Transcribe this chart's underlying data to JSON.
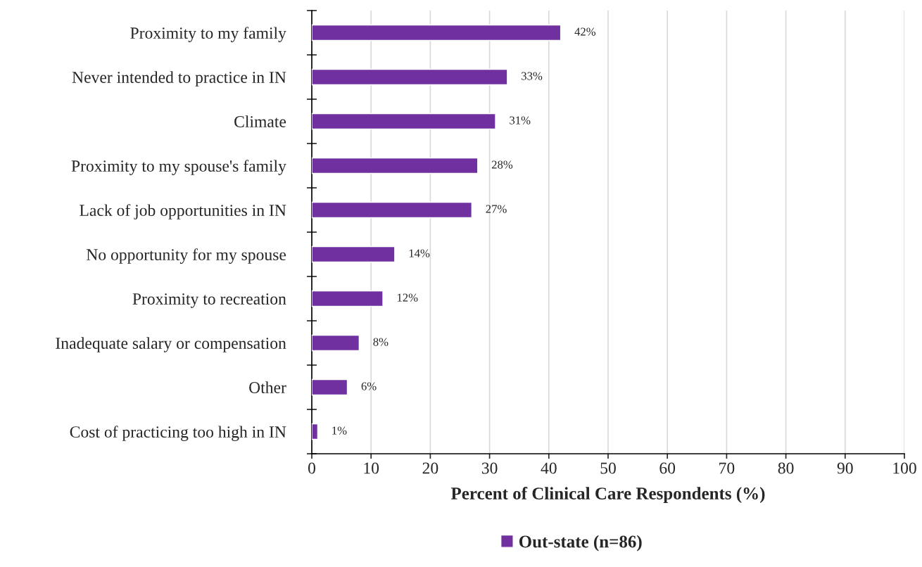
{
  "chart_data": {
    "type": "bar",
    "orientation": "horizontal",
    "categories": [
      "Proximity to my family",
      "Never intended to practice in IN",
      "Climate",
      "Proximity to my spouse's family",
      "Lack of job opportunities in IN",
      "No opportunity for my spouse",
      "Proximity to recreation",
      "Inadequate salary or compensation",
      "Other",
      "Cost of practicing too high in IN"
    ],
    "series": [
      {
        "name": "Out-state (n=86)",
        "color": "#7030a0",
        "values": [
          42,
          33,
          31,
          28,
          27,
          14,
          12,
          8,
          6,
          1
        ],
        "value_labels": [
          "42%",
          "33%",
          "31%",
          "28%",
          "27%",
          "14%",
          "12%",
          "8%",
          "6%",
          "1%"
        ]
      }
    ],
    "xlabel": "Percent of Clinical Care Respondents (%)",
    "xlim": [
      0,
      100
    ],
    "xticks": [
      0,
      10,
      20,
      30,
      40,
      50,
      60,
      70,
      80,
      90,
      100
    ],
    "grid": "x",
    "legend": "bottom"
  }
}
